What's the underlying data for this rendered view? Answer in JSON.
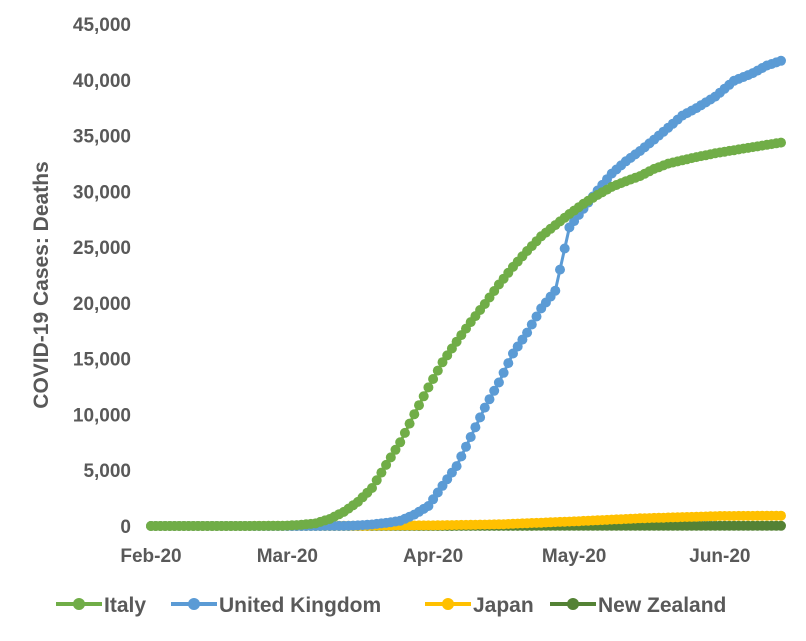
{
  "chart_data": {
    "type": "line",
    "title": "",
    "xlabel": "",
    "ylabel": "COVID-19 Cases: Deaths",
    "x_tick_labels": [
      "Feb-20",
      "Mar-20",
      "Apr-20",
      "May-20",
      "Jun-20"
    ],
    "x_tick_dates": [
      "2020-02-01",
      "2020-03-01",
      "2020-04-01",
      "2020-05-01",
      "2020-06-01"
    ],
    "x_range": [
      "2020-02-01",
      "2020-06-14"
    ],
    "y_tick_labels": [
      "0",
      "5,000",
      "10,000",
      "15,000",
      "20,000",
      "25,000",
      "30,000",
      "35,000",
      "40,000",
      "45,000"
    ],
    "ylim": [
      0,
      45000
    ],
    "grid": false,
    "legend_position": "bottom",
    "series": [
      {
        "name": "Italy",
        "color": "#70AD47",
        "points": [
          [
            "2020-02-01",
            0
          ],
          [
            "2020-02-21",
            1
          ],
          [
            "2020-02-25",
            11
          ],
          [
            "2020-02-28",
            21
          ],
          [
            "2020-03-01",
            34
          ],
          [
            "2020-03-04",
            107
          ],
          [
            "2020-03-07",
            233
          ],
          [
            "2020-03-10",
            631
          ],
          [
            "2020-03-13",
            1266
          ],
          [
            "2020-03-16",
            2158
          ],
          [
            "2020-03-19",
            3405
          ],
          [
            "2020-03-22",
            5476
          ],
          [
            "2020-03-25",
            7503
          ],
          [
            "2020-03-28",
            10023
          ],
          [
            "2020-03-31",
            12428
          ],
          [
            "2020-04-03",
            14681
          ],
          [
            "2020-04-06",
            16523
          ],
          [
            "2020-04-09",
            18279
          ],
          [
            "2020-04-12",
            19899
          ],
          [
            "2020-04-15",
            21645
          ],
          [
            "2020-04-18",
            23227
          ],
          [
            "2020-04-21",
            24648
          ],
          [
            "2020-04-24",
            25969
          ],
          [
            "2020-04-27",
            26977
          ],
          [
            "2020-04-30",
            27967
          ],
          [
            "2020-05-03",
            28884
          ],
          [
            "2020-05-06",
            29684
          ],
          [
            "2020-05-09",
            30395
          ],
          [
            "2020-05-12",
            30911
          ],
          [
            "2020-05-15",
            31368
          ],
          [
            "2020-05-18",
            32007
          ],
          [
            "2020-05-21",
            32486
          ],
          [
            "2020-05-24",
            32785
          ],
          [
            "2020-05-27",
            33072
          ],
          [
            "2020-05-31",
            33415
          ],
          [
            "2020-06-04",
            33689
          ],
          [
            "2020-06-08",
            33964
          ],
          [
            "2020-06-11",
            34167
          ],
          [
            "2020-06-14",
            34371
          ]
        ]
      },
      {
        "name": "United Kingdom",
        "color": "#5B9BD5",
        "points": [
          [
            "2020-02-01",
            0
          ],
          [
            "2020-03-06",
            1
          ],
          [
            "2020-03-10",
            6
          ],
          [
            "2020-03-13",
            10
          ],
          [
            "2020-03-16",
            55
          ],
          [
            "2020-03-19",
            137
          ],
          [
            "2020-03-22",
            281
          ],
          [
            "2020-03-25",
            465
          ],
          [
            "2020-03-28",
            1019
          ],
          [
            "2020-03-31",
            1789
          ],
          [
            "2020-04-03",
            3605
          ],
          [
            "2020-04-06",
            5373
          ],
          [
            "2020-04-09",
            7978
          ],
          [
            "2020-04-12",
            10612
          ],
          [
            "2020-04-15",
            12868
          ],
          [
            "2020-04-18",
            15464
          ],
          [
            "2020-04-21",
            17337
          ],
          [
            "2020-04-24",
            19506
          ],
          [
            "2020-04-27",
            21092
          ],
          [
            "2020-04-30",
            26771
          ],
          [
            "2020-05-03",
            28446
          ],
          [
            "2020-05-06",
            30076
          ],
          [
            "2020-05-09",
            31587
          ],
          [
            "2020-05-12",
            32692
          ],
          [
            "2020-05-15",
            33614
          ],
          [
            "2020-05-18",
            34636
          ],
          [
            "2020-05-21",
            35704
          ],
          [
            "2020-05-24",
            36793
          ],
          [
            "2020-05-27",
            37460
          ],
          [
            "2020-05-31",
            38489
          ],
          [
            "2020-06-04",
            39904
          ],
          [
            "2020-06-08",
            40597
          ],
          [
            "2020-06-11",
            41279
          ],
          [
            "2020-06-14",
            41698
          ]
        ]
      },
      {
        "name": "Japan",
        "color": "#FFC000",
        "points": [
          [
            "2020-02-01",
            0
          ],
          [
            "2020-03-01",
            6
          ],
          [
            "2020-03-15",
            24
          ],
          [
            "2020-04-01",
            57
          ],
          [
            "2020-04-15",
            149
          ],
          [
            "2020-05-01",
            415
          ],
          [
            "2020-05-15",
            687
          ],
          [
            "2020-06-01",
            892
          ],
          [
            "2020-06-14",
            925
          ]
        ]
      },
      {
        "name": "New Zealand",
        "color": "#548235",
        "points": [
          [
            "2020-02-01",
            0
          ],
          [
            "2020-03-29",
            1
          ],
          [
            "2020-04-15",
            9
          ],
          [
            "2020-05-01",
            19
          ],
          [
            "2020-05-15",
            21
          ],
          [
            "2020-06-01",
            22
          ],
          [
            "2020-06-14",
            22
          ]
        ]
      }
    ]
  }
}
